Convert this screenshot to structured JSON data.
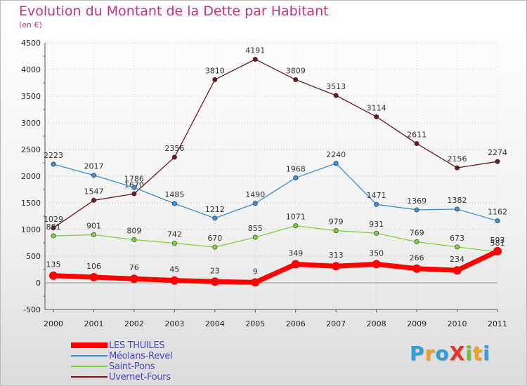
{
  "title": "Evolution du Montant de la Dette par Habitant",
  "subtitle": "(en €)",
  "brand": {
    "text": "ProXiti",
    "letters": [
      {
        "ch": "P",
        "color": "#2f9fd8"
      },
      {
        "ch": "r",
        "color": "#f0a020"
      },
      {
        "ch": "o",
        "color": "#2f9fd8"
      },
      {
        "ch": "X",
        "color": "#e8362a"
      },
      {
        "ch": "i",
        "color": "#7cbf3a"
      },
      {
        "ch": "t",
        "color": "#f0a020"
      },
      {
        "ch": "i",
        "color": "#2f9fd8"
      }
    ]
  },
  "chart_data": {
    "type": "line",
    "title": "Evolution du Montant de la Dette par Habitant",
    "subtitle": "(en €)",
    "xlabel": "",
    "ylabel": "",
    "x": [
      "2000",
      "2001",
      "2002",
      "2003",
      "2004",
      "2005",
      "2006",
      "2007",
      "2008",
      "2009",
      "2010",
      "2011"
    ],
    "ylim": [
      -500,
      4500
    ],
    "yticks": [
      -500,
      0,
      500,
      1000,
      1500,
      2000,
      2500,
      3000,
      3500,
      4000,
      4500
    ],
    "grid": "horizontal",
    "legend": "bottom-left",
    "series": [
      {
        "name": "LES THUILES",
        "color": "#ff0000",
        "values": [
          135,
          106,
          76,
          45,
          23,
          9,
          349,
          313,
          350,
          266,
          234,
          593
        ]
      },
      {
        "name": "Méolans-Revel",
        "color": "#3d8fd4",
        "values": [
          2223,
          2017,
          1786,
          1485,
          1212,
          1490,
          1968,
          2240,
          1471,
          1369,
          1382,
          1162
        ]
      },
      {
        "name": "Saint-Pons",
        "color": "#7fd13b",
        "values": [
          881,
          901,
          809,
          742,
          670,
          855,
          1071,
          979,
          931,
          769,
          673,
          581
        ]
      },
      {
        "name": "Uvernet-Fours",
        "color": "#6b1a1a",
        "values": [
          1029,
          1547,
          1670,
          2356,
          3810,
          4191,
          3809,
          3513,
          3114,
          2611,
          2156,
          2274
        ]
      }
    ]
  }
}
